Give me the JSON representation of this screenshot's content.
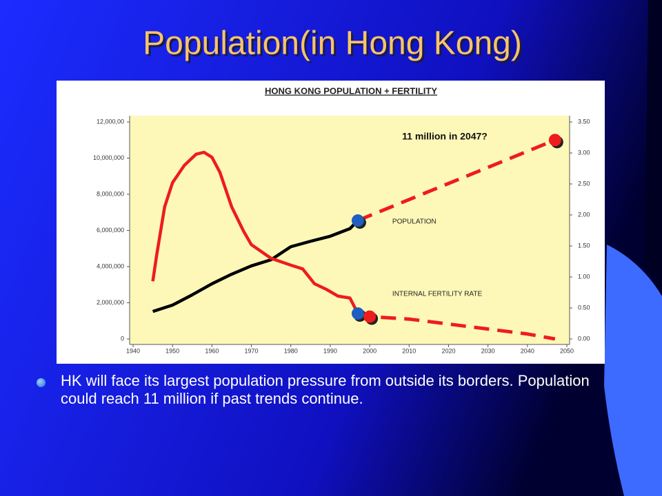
{
  "slide": {
    "title": "Population(in Hong Kong)",
    "bullet": "HK will face its largest population pressure from outside its borders. Population could reach 11 million if past trends continue."
  },
  "chart_data": {
    "type": "line",
    "title": "HONG KONG POPULATION + FERTILITY",
    "annotation": "11 million in 2047?",
    "xlim": [
      1940,
      2050
    ],
    "xticks": [
      1940,
      1950,
      1960,
      1970,
      1980,
      1990,
      2000,
      2010,
      2020,
      2030,
      2040,
      2050
    ],
    "ylim": [
      0,
      12000000
    ],
    "yticks": [
      0,
      {
        "value": 2000000,
        "label": "2,000,000"
      },
      {
        "value": 4000000,
        "label": "4,000,000"
      },
      {
        "value": 6000000,
        "label": "6,000,000"
      },
      {
        "value": 8000000,
        "label": "8,000,000"
      },
      {
        "value": 10000000,
        "label": "10,000,000"
      },
      {
        "value": 12000000,
        "label": "12,000,00"
      }
    ],
    "y2lim": [
      0,
      3.5
    ],
    "y2ticks": [
      {
        "value": 0,
        "label": "0.00"
      },
      {
        "value": 0.5,
        "label": "0.50"
      },
      {
        "value": 1,
        "label": "1.00"
      },
      {
        "value": 1.5,
        "label": "1.50"
      },
      {
        "value": 2,
        "label": "2.00"
      },
      {
        "value": 2.5,
        "label": "2.50"
      },
      {
        "value": 3,
        "label": "3.00"
      },
      {
        "value": 3.5,
        "label": "3.50"
      }
    ],
    "series": [
      {
        "name": "POPULATION",
        "color": "#000000",
        "style": "solid",
        "x": [
          1945,
          1950,
          1955,
          1960,
          1965,
          1970,
          1975,
          1980,
          1985,
          1990,
          1995,
          1997
        ],
        "values": [
          1520000,
          1870000,
          2440000,
          3050000,
          3580000,
          4040000,
          4380000,
          5100000,
          5400000,
          5680000,
          6100000,
          6550000
        ]
      },
      {
        "color": "#ee1c1c",
        "style": "dashed",
        "marker_colors": [
          "#1f5fbf",
          "#ee1c1c"
        ],
        "x": [
          1997,
          2047
        ],
        "values": [
          6550000,
          11000000
        ]
      },
      {
        "name": "INTERNAL FERTILITY RATE",
        "color": "#ee1c1c",
        "style": "solid",
        "axis": "y2",
        "x": [
          1945,
          1946,
          1948,
          1950,
          1953,
          1956,
          1958,
          1960,
          1962,
          1965,
          1968,
          1970,
          1975,
          1980,
          1983,
          1986,
          1989,
          1992,
          1995,
          1997
        ],
        "values": [
          0.93,
          1.36,
          2.13,
          2.52,
          2.8,
          2.98,
          3.01,
          2.93,
          2.69,
          2.13,
          1.74,
          1.52,
          1.3,
          1.19,
          1.13,
          0.89,
          0.8,
          0.69,
          0.66,
          0.41
        ]
      },
      {
        "color": "#ee1c1c",
        "style": "dashed",
        "axis": "y2",
        "marker_colors": [
          "#1f5fbf",
          "#ee1c1c"
        ],
        "x": [
          1997,
          2000,
          2010,
          2020,
          2030,
          2040,
          2047
        ],
        "values": [
          0.41,
          0.36,
          0.32,
          0.24,
          0.16,
          0.08,
          0
        ]
      }
    ]
  }
}
